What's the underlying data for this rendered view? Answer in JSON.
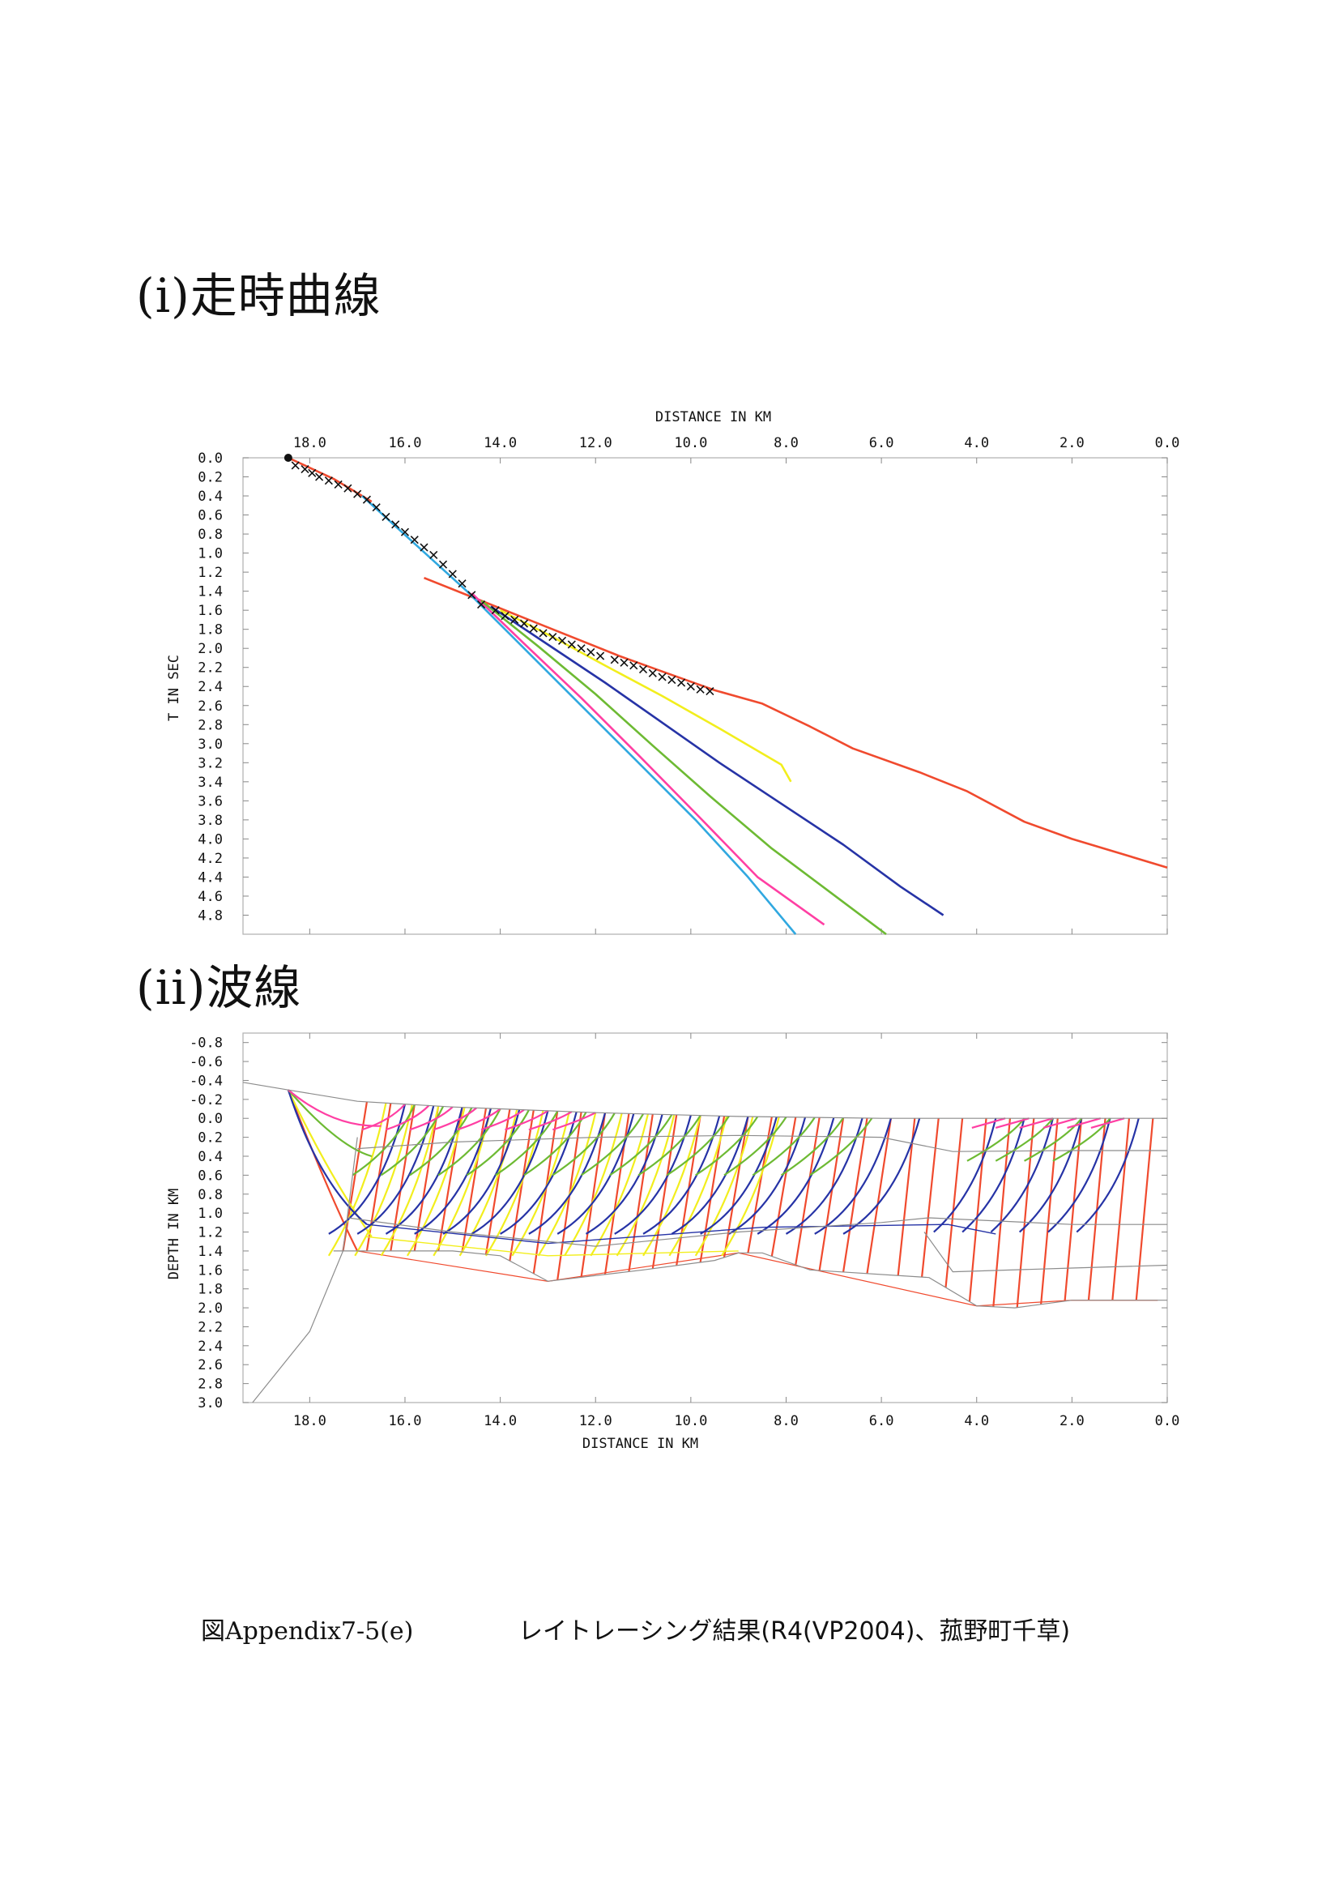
{
  "headings": {
    "travel_time": "(i)走時曲線",
    "rays": "(ii)波線"
  },
  "caption": {
    "figure_id": "図Appendix7-5(e)",
    "title": "レイトレーシング結果(R4(VP2004)、菰野町千草)"
  },
  "chart_data": [
    {
      "type": "line",
      "panel": "travel-time",
      "xlabel": "DISTANCE IN KM",
      "ylabel": "T IN SEC",
      "xlim": [
        19.4,
        0.0
      ],
      "ylim": [
        0.0,
        5.0
      ],
      "x_ticks": [
        "18.0",
        "16.0",
        "14.0",
        "12.0",
        "10.0",
        "8.0",
        "6.0",
        "4.0",
        "2.0",
        "0.0"
      ],
      "y_ticks": [
        "0.0",
        "0.2",
        "0.4",
        "0.6",
        "0.8",
        "1.0",
        "1.2",
        "1.4",
        "1.6",
        "1.8",
        "2.0",
        "2.2",
        "2.4",
        "2.6",
        "2.8",
        "3.0",
        "3.2",
        "3.4",
        "3.6",
        "3.8",
        "4.0",
        "4.2",
        "4.4",
        "4.6",
        "4.8"
      ],
      "shot": {
        "x": 18.45,
        "t": 0.0
      },
      "observed_picks": [
        [
          18.3,
          0.08
        ],
        [
          18.1,
          0.12
        ],
        [
          17.95,
          0.16
        ],
        [
          17.8,
          0.2
        ],
        [
          17.6,
          0.24
        ],
        [
          17.4,
          0.28
        ],
        [
          17.2,
          0.32
        ],
        [
          17.0,
          0.38
        ],
        [
          16.8,
          0.44
        ],
        [
          16.6,
          0.52
        ],
        [
          16.4,
          0.62
        ],
        [
          16.2,
          0.7
        ],
        [
          16.0,
          0.78
        ],
        [
          15.8,
          0.86
        ],
        [
          15.6,
          0.94
        ],
        [
          15.4,
          1.02
        ],
        [
          15.2,
          1.12
        ],
        [
          15.0,
          1.22
        ],
        [
          14.8,
          1.32
        ],
        [
          14.6,
          1.44
        ],
        [
          14.4,
          1.54
        ],
        [
          14.1,
          1.6
        ],
        [
          13.9,
          1.66
        ],
        [
          13.7,
          1.7
        ],
        [
          13.5,
          1.74
        ],
        [
          13.3,
          1.79
        ],
        [
          13.1,
          1.84
        ],
        [
          12.9,
          1.88
        ],
        [
          12.7,
          1.92
        ],
        [
          12.5,
          1.96
        ],
        [
          12.3,
          2.0
        ],
        [
          12.1,
          2.04
        ],
        [
          11.9,
          2.08
        ],
        [
          11.6,
          2.12
        ],
        [
          11.4,
          2.15
        ],
        [
          11.2,
          2.18
        ],
        [
          11.0,
          2.22
        ],
        [
          10.8,
          2.26
        ],
        [
          10.6,
          2.3
        ],
        [
          10.4,
          2.33
        ],
        [
          10.2,
          2.36
        ],
        [
          10.0,
          2.4
        ],
        [
          9.8,
          2.43
        ],
        [
          9.6,
          2.45
        ]
      ],
      "series": [
        {
          "color": "#f04a2e",
          "points": [
            [
              18.45,
              0.0
            ],
            [
              17.5,
              0.22
            ],
            [
              17.0,
              0.37
            ],
            [
              16.7,
              0.46
            ]
          ]
        },
        {
          "color": "#f04a2e",
          "points": [
            [
              15.6,
              1.26
            ],
            [
              14.5,
              1.48
            ],
            [
              13.5,
              1.68
            ],
            [
              12.5,
              1.88
            ],
            [
              11.5,
              2.08
            ],
            [
              10.5,
              2.26
            ],
            [
              9.5,
              2.44
            ],
            [
              8.5,
              2.58
            ],
            [
              7.5,
              2.82
            ],
            [
              6.6,
              3.05
            ],
            [
              5.2,
              3.3
            ],
            [
              4.2,
              3.5
            ],
            [
              3.0,
              3.82
            ],
            [
              2.0,
              4.0
            ],
            [
              1.0,
              4.15
            ],
            [
              0.0,
              4.3
            ]
          ]
        },
        {
          "color": "#30a8e0",
          "points": [
            [
              16.9,
              0.4
            ],
            [
              15.8,
              0.9
            ],
            [
              14.7,
              1.4
            ],
            [
              13.5,
              2.0
            ],
            [
              12.3,
              2.6
            ],
            [
              11.1,
              3.2
            ],
            [
              9.9,
              3.8
            ],
            [
              8.8,
              4.4
            ],
            [
              7.8,
              5.0
            ]
          ]
        },
        {
          "color": "#ff3fa3",
          "points": [
            [
              14.6,
              1.42
            ],
            [
              13.5,
              1.95
            ],
            [
              12.3,
              2.52
            ],
            [
              11.1,
              3.12
            ],
            [
              9.9,
              3.73
            ],
            [
              8.6,
              4.4
            ],
            [
              7.2,
              4.9
            ]
          ]
        },
        {
          "color": "#6dba33",
          "points": [
            [
              14.4,
              1.5
            ],
            [
              13.2,
              1.98
            ],
            [
              12.0,
              2.48
            ],
            [
              10.8,
              3.02
            ],
            [
              9.6,
              3.55
            ],
            [
              8.3,
              4.1
            ],
            [
              7.1,
              4.55
            ],
            [
              5.9,
              5.0
            ]
          ]
        },
        {
          "color": "#2633a6",
          "points": [
            [
              14.2,
              1.56
            ],
            [
              13.0,
              1.96
            ],
            [
              11.8,
              2.36
            ],
            [
              10.6,
              2.78
            ],
            [
              9.4,
              3.2
            ],
            [
              8.1,
              3.63
            ],
            [
              6.8,
              4.06
            ],
            [
              5.6,
              4.5
            ],
            [
              4.7,
              4.8
            ]
          ]
        },
        {
          "color": "#f2ee1d",
          "points": [
            [
              14.0,
              1.6
            ],
            [
              12.9,
              1.88
            ],
            [
              11.8,
              2.18
            ],
            [
              10.6,
              2.5
            ],
            [
              9.4,
              2.84
            ],
            [
              8.1,
              3.22
            ],
            [
              7.9,
              3.4
            ]
          ]
        }
      ]
    },
    {
      "type": "line",
      "panel": "ray-paths",
      "xlabel": "DISTANCE IN KM",
      "ylabel": "DEPTH IN KM",
      "xlim": [
        19.4,
        0.0
      ],
      "ylim": [
        -0.9,
        3.0
      ],
      "x_ticks": [
        "18.0",
        "16.0",
        "14.0",
        "12.0",
        "10.0",
        "8.0",
        "6.0",
        "4.0",
        "2.0",
        "0.0"
      ],
      "y_ticks": [
        "-0.8",
        "-0.6",
        "-0.4",
        "-0.2",
        "0.0",
        "0.2",
        "0.4",
        "0.6",
        "0.8",
        "1.0",
        "1.2",
        "1.4",
        "1.6",
        "1.8",
        "2.0",
        "2.2",
        "2.4",
        "2.6",
        "2.8",
        "3.0"
      ],
      "shot": {
        "x": 18.45,
        "depth": -0.3
      },
      "model_boundaries": [
        {
          "name": "surface",
          "points": [
            [
              19.4,
              -0.38
            ],
            [
              18.45,
              -0.3
            ],
            [
              17.0,
              -0.18
            ],
            [
              15.0,
              -0.12
            ],
            [
              12.0,
              -0.06
            ],
            [
              9.0,
              -0.02
            ],
            [
              6.0,
              0.0
            ],
            [
              3.0,
              0.0
            ],
            [
              0.0,
              0.0
            ]
          ]
        },
        {
          "name": "layer-2",
          "points": [
            [
              17.0,
              0.32
            ],
            [
              15.0,
              0.25
            ],
            [
              12.0,
              0.2
            ],
            [
              9.0,
              0.18
            ],
            [
              6.0,
              0.2
            ],
            [
              4.5,
              0.35
            ],
            [
              2.0,
              0.34
            ],
            [
              0.0,
              0.34
            ]
          ]
        },
        {
          "name": "layer-3",
          "points": [
            [
              17.2,
              1.05
            ],
            [
              15.0,
              1.2
            ],
            [
              12.0,
              1.35
            ],
            [
              9.0,
              1.2
            ],
            [
              6.0,
              1.1
            ],
            [
              5.0,
              1.05
            ],
            [
              2.0,
              1.12
            ],
            [
              0.0,
              1.12
            ]
          ]
        },
        {
          "name": "layer-4",
          "points": [
            [
              17.5,
              1.4
            ],
            [
              15.0,
              1.4
            ],
            [
              14.0,
              1.45
            ],
            [
              13.0,
              1.72
            ],
            [
              11.0,
              1.6
            ],
            [
              9.5,
              1.5
            ],
            [
              9.0,
              1.42
            ],
            [
              8.5,
              1.42
            ],
            [
              7.5,
              1.6
            ],
            [
              5.0,
              1.68
            ],
            [
              4.0,
              1.98
            ],
            [
              3.2,
              2.0
            ],
            [
              2.0,
              1.92
            ],
            [
              0.0,
              1.92
            ]
          ]
        },
        {
          "name": "basement-edge",
          "points": [
            [
              17.0,
              0.2
            ],
            [
              17.3,
              1.4
            ],
            [
              18.0,
              2.25
            ],
            [
              19.2,
              3.0
            ]
          ]
        },
        {
          "name": "layer-5",
          "points": [
            [
              5.1,
              1.2
            ],
            [
              4.5,
              1.62
            ],
            [
              2.0,
              1.58
            ],
            [
              0.0,
              1.55
            ]
          ]
        }
      ],
      "ray_family_colors": [
        "#f04a2e",
        "#f2ee1d",
        "#2633a6",
        "#6dba33",
        "#ff3fa3"
      ]
    }
  ]
}
